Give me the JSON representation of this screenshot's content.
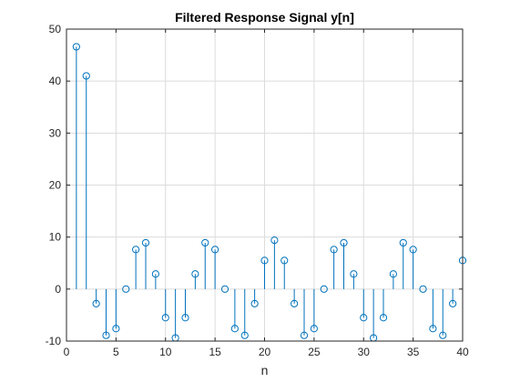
{
  "chart_data": {
    "type": "stem",
    "title": "Filtered Response Signal y[n]",
    "xlabel": "n",
    "ylabel": "",
    "xlim": [
      0,
      40
    ],
    "ylim": [
      -10,
      50
    ],
    "xticks": [
      "0",
      "5",
      "10",
      "15",
      "20",
      "25",
      "30",
      "35",
      "40"
    ],
    "yticks": [
      "-10",
      "0",
      "10",
      "20",
      "30",
      "40",
      "50"
    ],
    "grid": true,
    "legend": "none",
    "series_color": "#0072BD",
    "series": [
      {
        "x": [
          1,
          2,
          3,
          4,
          5,
          6,
          7,
          8,
          9,
          10,
          11,
          12,
          13,
          14,
          15,
          16,
          17,
          18,
          19,
          20,
          21,
          22,
          23,
          24,
          25,
          26,
          27,
          28,
          29,
          30,
          31,
          32,
          33,
          34,
          35,
          36,
          37,
          38,
          39,
          40
        ],
        "values": [
          46.6,
          41.0,
          -2.8,
          -8.9,
          -7.6,
          0,
          7.6,
          8.9,
          2.9,
          -5.5,
          -9.4,
          -5.5,
          2.9,
          8.9,
          7.6,
          0,
          -7.6,
          -8.9,
          -2.8,
          5.5,
          9.4,
          5.5,
          -2.8,
          -8.9,
          -7.6,
          0,
          7.6,
          8.9,
          2.9,
          -5.5,
          -9.4,
          -5.5,
          2.9,
          8.9,
          7.6,
          0,
          -7.6,
          -8.9,
          -2.8,
          5.5
        ]
      }
    ]
  }
}
